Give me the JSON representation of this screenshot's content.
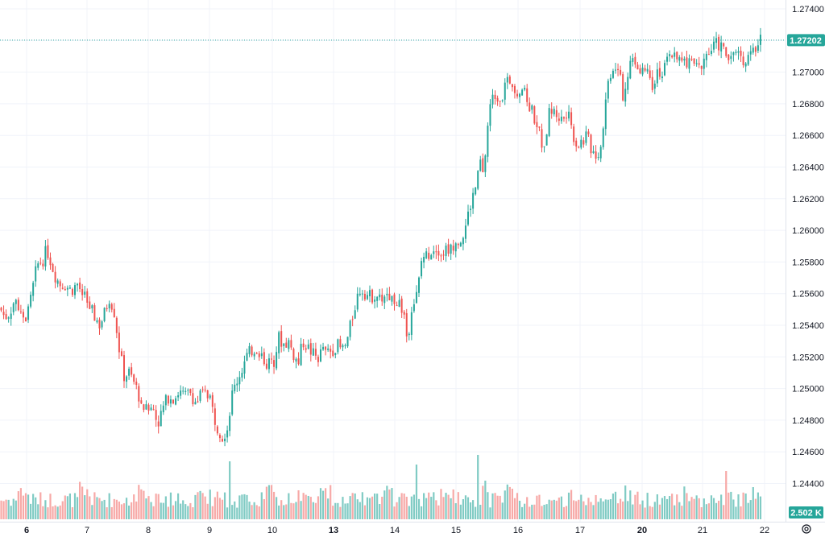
{
  "chart_data": {
    "type": "candlestick",
    "symbol_note": "",
    "y_axis": {
      "ticks": [
        "1.27400",
        "1.27200",
        "1.27000",
        "1.26800",
        "1.26600",
        "1.26400",
        "1.26200",
        "1.26000",
        "1.25800",
        "1.25600",
        "1.25400",
        "1.25200",
        "1.25000",
        "1.24800",
        "1.24600",
        "1.24400"
      ],
      "ylim": [
        1.2432,
        1.275
      ]
    },
    "x_axis": {
      "ticks": [
        {
          "label": "6",
          "bold": true
        },
        {
          "label": "7",
          "bold": false
        },
        {
          "label": "8",
          "bold": false
        },
        {
          "label": "9",
          "bold": false
        },
        {
          "label": "10",
          "bold": false
        },
        {
          "label": "13",
          "bold": true
        },
        {
          "label": "14",
          "bold": false
        },
        {
          "label": "15",
          "bold": false
        },
        {
          "label": "16",
          "bold": false
        },
        {
          "label": "17",
          "bold": false
        },
        {
          "label": "20",
          "bold": true
        },
        {
          "label": "21",
          "bold": false
        },
        {
          "label": "22",
          "bold": false
        }
      ]
    },
    "last_price": 1.27202,
    "last_price_label": "1.27202",
    "volume_label": "2.502 K",
    "grid": true,
    "colors": {
      "up": "#26a69a",
      "down": "#ef5350",
      "up_volume": "#80cbc4",
      "down_volume": "#f7a9a7",
      "badge": "#26a69a",
      "grid": "#f0f3fa"
    },
    "close_path": [
      [
        0,
        1.2551
      ],
      [
        6,
        1.2545
      ],
      [
        12,
        1.2548
      ],
      [
        18,
        1.2556
      ],
      [
        24,
        1.2551
      ],
      [
        32,
        1.2545
      ],
      [
        38,
        1.2556
      ],
      [
        46,
        1.2578
      ],
      [
        54,
        1.2582
      ],
      [
        58,
        1.2588
      ],
      [
        62,
        1.2582
      ],
      [
        68,
        1.2572
      ],
      [
        74,
        1.2566
      ],
      [
        80,
        1.2566
      ],
      [
        88,
        1.2562
      ],
      [
        96,
        1.2566
      ],
      [
        104,
        1.2558
      ],
      [
        110,
        1.2552
      ],
      [
        118,
        1.2545
      ],
      [
        124,
        1.254
      ],
      [
        130,
        1.2548
      ],
      [
        136,
        1.2558
      ],
      [
        142,
        1.2548
      ],
      [
        148,
        1.2525
      ],
      [
        154,
        1.2508
      ],
      [
        160,
        1.251
      ],
      [
        168,
        1.2502
      ],
      [
        176,
        1.249
      ],
      [
        184,
        1.2486
      ],
      [
        190,
        1.2488
      ],
      [
        196,
        1.2478
      ],
      [
        204,
        1.249
      ],
      [
        210,
        1.2496
      ],
      [
        216,
        1.2494
      ],
      [
        222,
        1.2498
      ],
      [
        230,
        1.2495
      ],
      [
        236,
        1.2498
      ],
      [
        244,
        1.249
      ],
      [
        250,
        1.2498
      ],
      [
        256,
        1.2496
      ],
      [
        262,
        1.249
      ],
      [
        268,
        1.2478
      ],
      [
        276,
        1.247
      ],
      [
        282,
        1.2475
      ],
      [
        288,
        1.2496
      ],
      [
        294,
        1.2505
      ],
      [
        300,
        1.2512
      ],
      [
        306,
        1.252
      ],
      [
        312,
        1.2524
      ],
      [
        318,
        1.2526
      ],
      [
        324,
        1.2522
      ],
      [
        332,
        1.2515
      ],
      [
        340,
        1.2518
      ],
      [
        346,
        1.2532
      ],
      [
        352,
        1.2528
      ],
      [
        358,
        1.253
      ],
      [
        364,
        1.2522
      ],
      [
        370,
        1.2515
      ],
      [
        376,
        1.253
      ],
      [
        382,
        1.2526
      ],
      [
        388,
        1.2522
      ],
      [
        394,
        1.2519
      ],
      [
        400,
        1.2524
      ],
      [
        406,
        1.2522
      ],
      [
        412,
        1.2524
      ],
      [
        418,
        1.2528
      ],
      [
        424,
        1.2524
      ],
      [
        430,
        1.2528
      ],
      [
        436,
        1.2542
      ],
      [
        442,
        1.2556
      ],
      [
        448,
        1.2564
      ],
      [
        454,
        1.256
      ],
      [
        460,
        1.2558
      ],
      [
        466,
        1.256
      ],
      [
        472,
        1.2556
      ],
      [
        478,
        1.256
      ],
      [
        484,
        1.2558
      ],
      [
        490,
        1.2556
      ],
      [
        496,
        1.2554
      ],
      [
        502,
        1.2546
      ],
      [
        506,
        1.2528
      ],
      [
        510,
        1.2552
      ],
      [
        516,
        1.2556
      ],
      [
        520,
        1.2568
      ],
      [
        524,
        1.2584
      ],
      [
        530,
        1.2584
      ],
      [
        536,
        1.2588
      ],
      [
        542,
        1.259
      ],
      [
        548,
        1.2586
      ],
      [
        554,
        1.2588
      ],
      [
        560,
        1.2588
      ],
      [
        566,
        1.2596
      ],
      [
        572,
        1.2594
      ],
      [
        576,
        1.2598
      ],
      [
        580,
        1.2608
      ],
      [
        586,
        1.262
      ],
      [
        592,
        1.263
      ],
      [
        596,
        1.2644
      ],
      [
        600,
        1.2632
      ],
      [
        604,
        1.266
      ],
      [
        608,
        1.2678
      ],
      [
        612,
        1.2684
      ],
      [
        616,
        1.2686
      ],
      [
        620,
        1.2684
      ],
      [
        626,
        1.2688
      ],
      [
        632,
        1.2696
      ],
      [
        636,
        1.2694
      ],
      [
        642,
        1.2688
      ],
      [
        648,
        1.269
      ],
      [
        654,
        1.2682
      ],
      [
        660,
        1.2676
      ],
      [
        666,
        1.2668
      ],
      [
        672,
        1.2656
      ],
      [
        676,
        1.2648
      ],
      [
        680,
        1.2672
      ],
      [
        684,
        1.2676
      ],
      [
        690,
        1.2674
      ],
      [
        696,
        1.267
      ],
      [
        702,
        1.2672
      ],
      [
        708,
        1.267
      ],
      [
        712,
        1.266
      ],
      [
        716,
        1.2654
      ],
      [
        722,
        1.2656
      ],
      [
        728,
        1.266
      ],
      [
        732,
        1.2654
      ],
      [
        736,
        1.265
      ],
      [
        742,
        1.2648
      ],
      [
        746,
        1.2654
      ],
      [
        750,
        1.2674
      ],
      [
        754,
        1.2692
      ],
      [
        758,
        1.27
      ],
      [
        762,
        1.2704
      ],
      [
        766,
        1.2706
      ],
      [
        770,
        1.27
      ],
      [
        774,
        1.2682
      ],
      [
        778,
        1.27
      ],
      [
        784,
        1.2706
      ],
      [
        790,
        1.2702
      ],
      [
        796,
        1.2704
      ],
      [
        802,
        1.27
      ],
      [
        806,
        1.2702
      ],
      [
        810,
        1.2692
      ],
      [
        816,
        1.2702
      ],
      [
        822,
        1.2698
      ],
      [
        826,
        1.2704
      ],
      [
        832,
        1.271
      ],
      [
        838,
        1.2714
      ],
      [
        844,
        1.2706
      ],
      [
        850,
        1.2706
      ],
      [
        856,
        1.2708
      ],
      [
        862,
        1.2704
      ],
      [
        868,
        1.2702
      ],
      [
        874,
        1.271
      ],
      [
        880,
        1.2712
      ],
      [
        886,
        1.2716
      ],
      [
        890,
        1.2718
      ],
      [
        896,
        1.2716
      ],
      [
        900,
        1.2712
      ],
      [
        904,
        1.2708
      ],
      [
        908,
        1.2716
      ],
      [
        912,
        1.271
      ],
      [
        918,
        1.2712
      ],
      [
        924,
        1.2708
      ],
      [
        930,
        1.271
      ],
      [
        936,
        1.2712
      ],
      [
        940,
        1.2716
      ],
      [
        944,
        1.27202
      ]
    ],
    "volume_spikes": [
      [
        285,
        0.9
      ],
      [
        516,
        0.85
      ],
      [
        593,
        1.0
      ],
      [
        902,
        0.75
      ],
      [
        370,
        0.45
      ],
      [
        601,
        0.6
      ],
      [
        669,
        0.45
      ],
      [
        503,
        0.4
      ],
      [
        504,
        0.35
      ],
      [
        600,
        0.52
      ],
      [
        670,
        0.38
      ]
    ]
  }
}
